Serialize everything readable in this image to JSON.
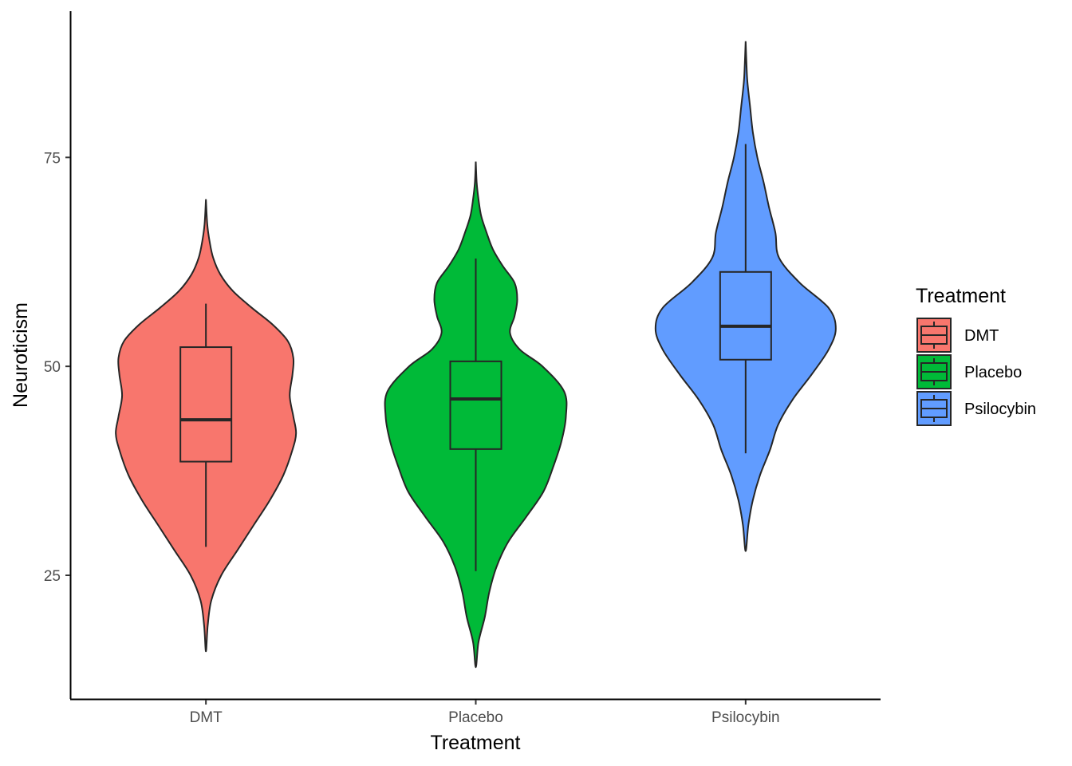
{
  "chart_data": {
    "type": "violin",
    "title": "",
    "xlabel": "Treatment",
    "ylabel": "Neuroticism",
    "ylim": [
      10.2,
      92.5
    ],
    "yticks": [
      25,
      50,
      75
    ],
    "categories": [
      "DMT",
      "Placebo",
      "Psilocybin"
    ],
    "legend": {
      "title": "Treatment",
      "position": "right"
    },
    "grid": false,
    "colors": {
      "DMT": "#F8766D",
      "Placebo": "#00BA38",
      "Psilocybin": "#619CFF"
    },
    "series": [
      {
        "name": "DMT",
        "box": {
          "whisker_low": 28.4,
          "q1": 38.6,
          "median": 43.6,
          "q3": 52.3,
          "whisker_high": 57.5
        },
        "density_range": [
          15.9,
          70.0
        ],
        "density_profile": [
          [
            15.9,
            0.0
          ],
          [
            19.0,
            0.02
          ],
          [
            22.0,
            0.06
          ],
          [
            25.0,
            0.17
          ],
          [
            28.0,
            0.35
          ],
          [
            31.0,
            0.53
          ],
          [
            34.0,
            0.71
          ],
          [
            37.0,
            0.86
          ],
          [
            40.0,
            0.96
          ],
          [
            42.0,
            1.0
          ],
          [
            44.0,
            0.97
          ],
          [
            46.5,
            0.93
          ],
          [
            49.0,
            0.96
          ],
          [
            51.0,
            0.97
          ],
          [
            53.0,
            0.91
          ],
          [
            55.0,
            0.74
          ],
          [
            57.0,
            0.51
          ],
          [
            59.0,
            0.3
          ],
          [
            61.0,
            0.16
          ],
          [
            63.0,
            0.08
          ],
          [
            65.0,
            0.04
          ],
          [
            67.0,
            0.015
          ],
          [
            70.0,
            0.0
          ]
        ]
      },
      {
        "name": "Placebo",
        "box": {
          "whisker_low": 25.5,
          "q1": 40.1,
          "median": 46.1,
          "q3": 50.6,
          "whisker_high": 62.9
        },
        "density_range": [
          14.0,
          74.5
        ],
        "density_profile": [
          [
            14.0,
            0.0
          ],
          [
            17.0,
            0.03
          ],
          [
            20.0,
            0.1
          ],
          [
            23.0,
            0.15
          ],
          [
            26.0,
            0.23
          ],
          [
            29.0,
            0.36
          ],
          [
            32.0,
            0.56
          ],
          [
            35.0,
            0.75
          ],
          [
            38.0,
            0.86
          ],
          [
            41.0,
            0.95
          ],
          [
            44.0,
            1.0
          ],
          [
            47.0,
            0.98
          ],
          [
            50.0,
            0.74
          ],
          [
            52.0,
            0.49
          ],
          [
            54.0,
            0.38
          ],
          [
            56.0,
            0.43
          ],
          [
            58.0,
            0.46
          ],
          [
            60.0,
            0.43
          ],
          [
            62.0,
            0.3
          ],
          [
            64.0,
            0.19
          ],
          [
            66.0,
            0.12
          ],
          [
            68.0,
            0.06
          ],
          [
            70.0,
            0.03
          ],
          [
            72.0,
            0.01
          ],
          [
            74.5,
            0.0
          ]
        ]
      },
      {
        "name": "Psilocybin",
        "box": {
          "whisker_low": 39.6,
          "q1": 50.8,
          "median": 54.8,
          "q3": 61.3,
          "whisker_high": 76.6
        },
        "density_range": [
          27.9,
          88.9
        ],
        "density_profile": [
          [
            27.9,
            0.0
          ],
          [
            31.0,
            0.03
          ],
          [
            34.0,
            0.08
          ],
          [
            37.0,
            0.16
          ],
          [
            40.0,
            0.27
          ],
          [
            43.0,
            0.36
          ],
          [
            46.0,
            0.52
          ],
          [
            49.0,
            0.73
          ],
          [
            52.0,
            0.92
          ],
          [
            54.5,
            1.0
          ],
          [
            57.0,
            0.92
          ],
          [
            60.0,
            0.6
          ],
          [
            63.0,
            0.37
          ],
          [
            66.0,
            0.33
          ],
          [
            69.0,
            0.26
          ],
          [
            72.0,
            0.2
          ],
          [
            75.0,
            0.13
          ],
          [
            78.0,
            0.08
          ],
          [
            81.0,
            0.05
          ],
          [
            84.0,
            0.02
          ],
          [
            86.0,
            0.01
          ],
          [
            88.9,
            0.0
          ]
        ]
      }
    ]
  }
}
